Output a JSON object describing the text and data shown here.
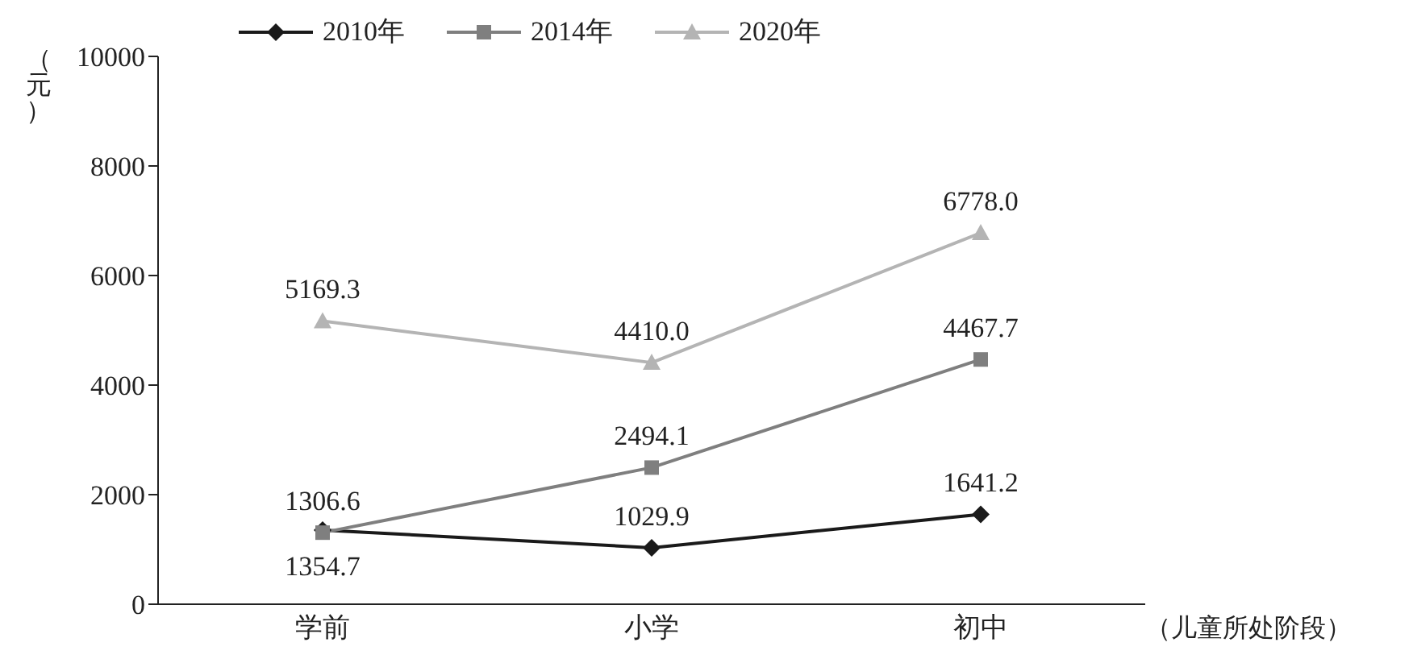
{
  "chart_data": {
    "type": "line",
    "ylabel": "（元）",
    "xlabel": "（儿童所处阶段）",
    "categories": [
      "学前",
      "小学",
      "初中"
    ],
    "series": [
      {
        "name": "2010年",
        "color": "#1a1a1a",
        "marker": "diamond",
        "values": [
          1354.7,
          1029.9,
          1641.2
        ],
        "value_labels": [
          "1354.7",
          "1029.9",
          "1641.2"
        ]
      },
      {
        "name": "2014年",
        "color": "#7f7f7f",
        "marker": "square",
        "values": [
          1306.6,
          2494.1,
          4467.7
        ],
        "value_labels": [
          "1306.6",
          "2494.1",
          "4467.7"
        ]
      },
      {
        "name": "2020年",
        "color": "#b4b4b4",
        "marker": "triangle",
        "values": [
          5169.3,
          4410,
          6778
        ],
        "value_labels": [
          "5169.3",
          "4410.0",
          "6778.0"
        ]
      }
    ],
    "ylim": [
      0,
      10000
    ],
    "yticks": [
      0,
      2000,
      4000,
      6000,
      8000,
      10000
    ],
    "legend": "top",
    "line_style": "solid"
  }
}
